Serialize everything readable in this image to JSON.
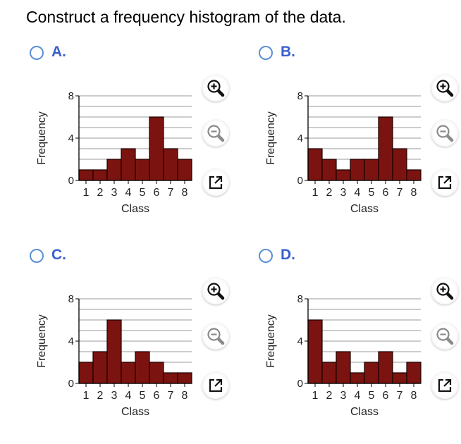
{
  "question": "Construct a frequency histogram of the data.",
  "options": [
    {
      "label": "A.",
      "chart_data": {
        "type": "bar",
        "categories": [
          "1",
          "2",
          "3",
          "4",
          "5",
          "6",
          "7",
          "8"
        ],
        "values": [
          1,
          1,
          2,
          3,
          2,
          6,
          3,
          2
        ],
        "xlabel": "Class",
        "ylabel": "Frequency",
        "ylim": [
          0,
          8
        ],
        "yticks": [
          "0",
          "4",
          "8"
        ]
      }
    },
    {
      "label": "B.",
      "chart_data": {
        "type": "bar",
        "categories": [
          "1",
          "2",
          "3",
          "4",
          "5",
          "6",
          "7",
          "8"
        ],
        "values": [
          3,
          2,
          1,
          2,
          2,
          6,
          3,
          1
        ],
        "xlabel": "Class",
        "ylabel": "Frequency",
        "ylim": [
          0,
          8
        ],
        "yticks": [
          "0",
          "4",
          "8"
        ]
      }
    },
    {
      "label": "C.",
      "chart_data": {
        "type": "bar",
        "categories": [
          "1",
          "2",
          "3",
          "4",
          "5",
          "6",
          "7",
          "8"
        ],
        "values": [
          2,
          3,
          6,
          2,
          3,
          2,
          1,
          1
        ],
        "xlabel": "Class",
        "ylabel": "Frequency",
        "ylim": [
          0,
          8
        ],
        "yticks": [
          "0",
          "4",
          "8"
        ]
      }
    },
    {
      "label": "D.",
      "chart_data": {
        "type": "bar",
        "categories": [
          "1",
          "2",
          "3",
          "4",
          "5",
          "6",
          "7",
          "8"
        ],
        "values": [
          6,
          2,
          3,
          1,
          2,
          3,
          1,
          2
        ],
        "xlabel": "Class",
        "ylabel": "Frequency",
        "ylim": [
          0,
          8
        ],
        "yticks": [
          "0",
          "4",
          "8"
        ]
      }
    }
  ],
  "colors": {
    "bar_fill": "#7b1410",
    "bar_stroke": "#1a0000",
    "grid": "#9a9a9a",
    "label_blue": "#3a5fcd",
    "radio_border": "#5b8fd6"
  },
  "icons": [
    "zoom-in-icon",
    "zoom-out-icon",
    "open-external-icon"
  ]
}
